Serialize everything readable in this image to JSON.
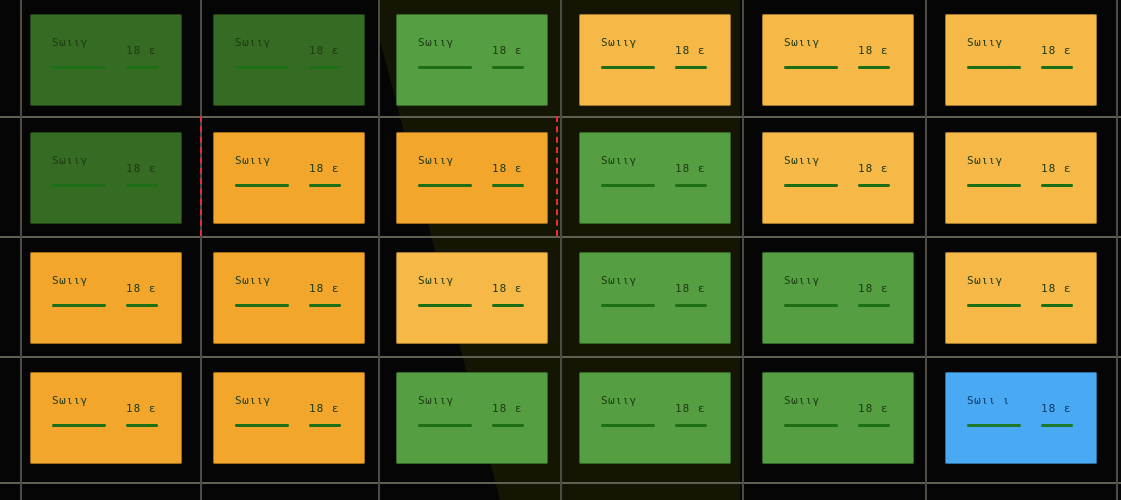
{
  "colors": {
    "green_dark": "#366b23",
    "green": "#559f42",
    "orange": "#f3a62c",
    "orange_light": "#f6b847",
    "blue": "#49a9f2",
    "gridline": "#5f5f52",
    "bar": "#1d6f16",
    "dashed": "#e0303a"
  },
  "grid": {
    "rows": [
      {
        "cells": [
          {
            "kind": "green_dark",
            "label": "Sωιιγ",
            "value": "18 ε"
          },
          {
            "kind": "green_dark",
            "label": "Sωιιγ",
            "value": "18 ε"
          },
          {
            "kind": "green",
            "label": "Sωιιγ",
            "value": "18 ε"
          },
          {
            "kind": "orange_light",
            "label": "Sωιιγ",
            "value": "18 ε"
          },
          {
            "kind": "orange_light",
            "label": "Sωιιγ",
            "value": "18 ε"
          },
          {
            "kind": "orange_light",
            "label": "Sωιιγ",
            "value": "18 ε"
          }
        ]
      },
      {
        "cells": [
          {
            "kind": "green_dark",
            "label": "Sωιιγ",
            "value": "18 ε"
          },
          {
            "kind": "orange",
            "label": "Sωιιγ",
            "value": "18 ε"
          },
          {
            "kind": "orange",
            "label": "Sωιιγ",
            "value": "18 ε"
          },
          {
            "kind": "green",
            "label": "Sωιιγ",
            "value": "18 ε"
          },
          {
            "kind": "orange_light",
            "label": "Sωιιγ",
            "value": "18 ε"
          },
          {
            "kind": "orange_light",
            "label": "Sωιιγ",
            "value": "18 ε"
          }
        ]
      },
      {
        "cells": [
          {
            "kind": "orange",
            "label": "Sωιιγ",
            "value": "18 ε"
          },
          {
            "kind": "orange",
            "label": "Sωιιγ",
            "value": "18 ε"
          },
          {
            "kind": "orange_light",
            "label": "Sωιιγ",
            "value": "18 ε"
          },
          {
            "kind": "green",
            "label": "Sωιιγ",
            "value": "18 ε"
          },
          {
            "kind": "green",
            "label": "Sωιιγ",
            "value": "18 ε"
          },
          {
            "kind": "orange_light",
            "label": "Sωιιγ",
            "value": "18 ε"
          }
        ]
      },
      {
        "cells": [
          {
            "kind": "orange",
            "label": "Sωιιγ",
            "value": "18 ε"
          },
          {
            "kind": "orange",
            "label": "Sωιιγ",
            "value": "18 ε"
          },
          {
            "kind": "green",
            "label": "Sωιιγ",
            "value": "18 ε"
          },
          {
            "kind": "green",
            "label": "Sωιιγ",
            "value": "18 ε"
          },
          {
            "kind": "green",
            "label": "Sωιιγ",
            "value": "18 ε"
          },
          {
            "kind": "blue",
            "label": "Sωιι ι",
            "value": "18 ε"
          }
        ]
      }
    ]
  }
}
